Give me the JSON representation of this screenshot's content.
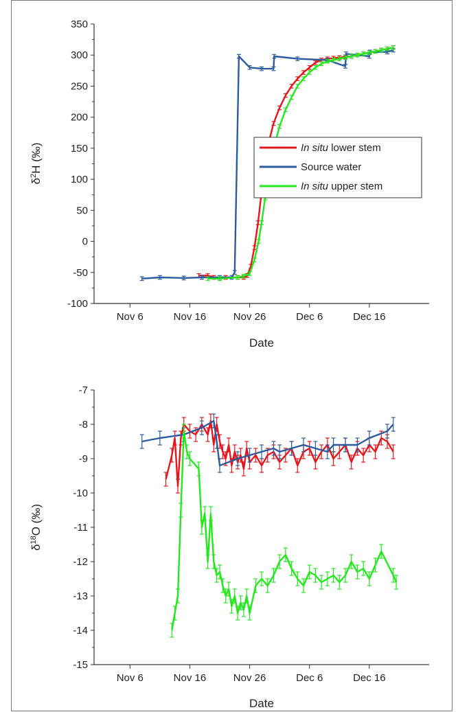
{
  "chart_data": [
    {
      "type": "line",
      "title": "",
      "xlabel": "Date",
      "ylabel": "δ²H (‰)",
      "ylabel_parts": {
        "delta": "δ",
        "sup": "2",
        "element": "H",
        "unit": " (‰)"
      },
      "xlim": [
        "Nov 6",
        "Dec 25"
      ],
      "ylim": [
        -100,
        350
      ],
      "x_ticks": [
        {
          "label": "Nov 6",
          "value": 0
        },
        {
          "label": "Nov 16",
          "value": 10
        },
        {
          "label": "Nov 26",
          "value": 20
        },
        {
          "label": "Dec 6",
          "value": 30
        },
        {
          "label": "Dec 16",
          "value": 40
        }
      ],
      "y_ticks": [
        -100,
        -50,
        0,
        50,
        100,
        150,
        200,
        250,
        300,
        350
      ],
      "grid": false,
      "legend": {
        "placement": "center-right",
        "entries": [
          {
            "series": 0,
            "prefix_italic": "In situ",
            "suffix": " lower stem"
          },
          {
            "series": 1,
            "prefix_italic": "",
            "suffix": "Source water"
          },
          {
            "series": 2,
            "prefix_italic": "In situ",
            "suffix": " upper stem"
          }
        ]
      },
      "series": [
        {
          "name": "In situ lower stem",
          "color": "#e8151b",
          "x": [
            11.5,
            13,
            14,
            16,
            18,
            19,
            19.6,
            20.2,
            20.8,
            21.4,
            22,
            22.6,
            23.2,
            24,
            25,
            26,
            27,
            28,
            29,
            30,
            31,
            32,
            33,
            34,
            35,
            36,
            37,
            38,
            39,
            40,
            41,
            42,
            43,
            44
          ],
          "y": [
            -55,
            -55,
            -58,
            -58,
            -58,
            -58,
            -55,
            -40,
            -10,
            30,
            80,
            130,
            160,
            190,
            215,
            235,
            250,
            262,
            272,
            280,
            288,
            292,
            294,
            295,
            296,
            297,
            298,
            300,
            302,
            304,
            306,
            308,
            310,
            312
          ]
        },
        {
          "name": "Source water",
          "color": "#2c5aa0",
          "x": [
            2,
            5,
            9,
            12,
            15,
            17,
            17.5,
            18.2,
            20,
            22,
            24,
            24.1,
            28,
            33,
            36,
            36.1,
            40,
            40.1,
            43,
            44
          ],
          "y": [
            -60,
            -58,
            -59,
            -58,
            -58,
            -58,
            -50,
            298,
            280,
            278,
            278,
            298,
            294,
            292,
            282,
            302,
            298,
            305,
            305,
            308
          ]
        },
        {
          "name": "In situ upper stem",
          "color": "#22e81c",
          "x": [
            13,
            15,
            18,
            19,
            20,
            20.8,
            21.5,
            22,
            22.6,
            23.2,
            24,
            25,
            26,
            27,
            28,
            29,
            30,
            31,
            32,
            33,
            34,
            35,
            36,
            37,
            38,
            39,
            40,
            41,
            42,
            43,
            44
          ],
          "y": [
            -60,
            -60,
            -58,
            -56,
            -52,
            -30,
            0,
            30,
            70,
            110,
            150,
            185,
            212,
            232,
            250,
            262,
            272,
            280,
            286,
            290,
            292,
            294,
            296,
            298,
            300,
            302,
            304,
            306,
            308,
            310,
            312
          ]
        }
      ]
    },
    {
      "type": "line",
      "title": "",
      "xlabel": "Date",
      "ylabel": "δ¹⁸O (‰)",
      "ylabel_parts": {
        "delta": "δ",
        "sup": "18",
        "element": "O",
        "unit": " (‰)"
      },
      "xlim": [
        "Nov 6",
        "Dec 25"
      ],
      "ylim": [
        -15,
        -7
      ],
      "x_ticks": [
        {
          "label": "Nov 6",
          "value": 0
        },
        {
          "label": "Nov 16",
          "value": 10
        },
        {
          "label": "Nov 26",
          "value": 20
        },
        {
          "label": "Dec 6",
          "value": 30
        },
        {
          "label": "Dec 16",
          "value": 40
        }
      ],
      "y_ticks": [
        -15,
        -14,
        -13,
        -12,
        -11,
        -10,
        -9,
        -8,
        -7
      ],
      "grid": false,
      "series": [
        {
          "name": "In situ lower stem",
          "color": "#e8151b",
          "x": [
            6,
            7,
            7.5,
            8,
            8.5,
            9,
            10,
            11,
            12,
            13,
            13.5,
            14,
            14.5,
            15,
            15.5,
            16,
            16.5,
            17,
            17.5,
            18,
            18.5,
            19,
            19.5,
            20,
            21,
            22,
            23,
            24,
            25,
            26,
            27,
            28,
            29,
            30,
            31,
            32,
            33,
            34,
            35,
            36,
            37,
            38,
            39,
            40,
            41,
            42,
            43,
            44
          ],
          "y": [
            -9.6,
            -8.9,
            -8.4,
            -9.8,
            -8.4,
            -8.0,
            -8.2,
            -8.3,
            -8.0,
            -8.3,
            -7.9,
            -8.6,
            -8.0,
            -8.5,
            -8.8,
            -9.0,
            -8.6,
            -9.2,
            -8.8,
            -9.1,
            -8.9,
            -9.3,
            -8.7,
            -9.1,
            -8.9,
            -9.2,
            -8.9,
            -8.8,
            -9.1,
            -8.9,
            -8.7,
            -9.2,
            -8.8,
            -8.7,
            -9.1,
            -8.8,
            -8.6,
            -9.0,
            -8.8,
            -8.6,
            -9.1,
            -8.7,
            -8.9,
            -8.6,
            -8.8,
            -8.4,
            -8.5,
            -8.8
          ]
        },
        {
          "name": "Source water",
          "color": "#2c5aa0",
          "x": [
            2,
            5,
            9,
            12,
            14,
            14.5,
            15,
            18,
            20,
            22,
            24,
            25,
            27,
            29,
            31,
            33,
            34,
            36,
            38,
            40,
            43,
            44
          ],
          "y": [
            -8.5,
            -8.4,
            -8.3,
            -8.1,
            -7.9,
            -8.5,
            -9.2,
            -9.0,
            -8.9,
            -8.8,
            -8.7,
            -8.8,
            -8.7,
            -8.6,
            -8.7,
            -8.8,
            -8.6,
            -8.6,
            -8.6,
            -8.4,
            -8.2,
            -8.0
          ]
        },
        {
          "name": "In situ upper stem",
          "color": "#22e81c",
          "x": [
            7,
            7.5,
            8,
            8.5,
            9,
            9.5,
            10,
            11.5,
            12,
            12.5,
            13,
            13.5,
            14,
            14.5,
            15,
            15.5,
            16,
            16.5,
            17,
            17.5,
            18,
            18.5,
            19,
            19.5,
            20,
            21,
            22,
            23,
            24,
            25,
            26,
            27,
            28,
            29,
            30,
            31,
            32,
            33,
            34,
            35,
            36,
            37,
            38,
            39,
            40,
            41,
            42,
            44,
            44.5
          ],
          "y": [
            -14.0,
            -13.5,
            -13.0,
            -10.5,
            -8.2,
            -8.8,
            -9.0,
            -9.3,
            -11.0,
            -10.6,
            -12.0,
            -10.6,
            -12.0,
            -12.4,
            -12.3,
            -12.7,
            -13.0,
            -12.8,
            -13.3,
            -13.0,
            -13.5,
            -13.2,
            -13.4,
            -13.0,
            -13.5,
            -12.7,
            -12.5,
            -12.7,
            -12.4,
            -12.0,
            -11.8,
            -12.2,
            -12.5,
            -12.7,
            -12.3,
            -12.4,
            -12.6,
            -12.5,
            -12.4,
            -12.6,
            -12.4,
            -12.0,
            -12.3,
            -12.2,
            -12.5,
            -12.1,
            -11.7,
            -12.4,
            -12.6
          ]
        }
      ]
    }
  ]
}
